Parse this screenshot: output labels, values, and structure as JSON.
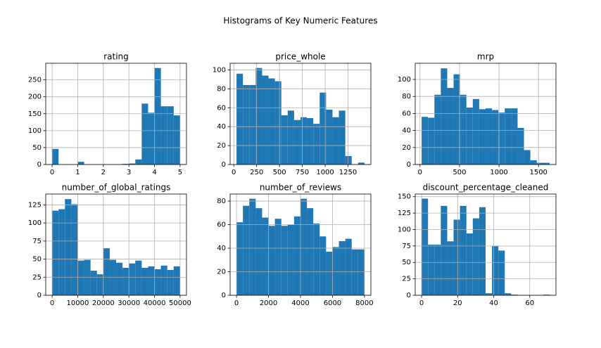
{
  "title": "Histograms of Key Numeric Features",
  "chart_data": [
    {
      "type": "histogram",
      "title": "rating",
      "color": "#1f77b4",
      "grid": true,
      "bins": [
        0,
        0.25,
        0.5,
        0.75,
        1,
        1.25,
        1.5,
        1.75,
        2,
        2.25,
        2.5,
        2.75,
        3,
        3.25,
        3.5,
        3.75,
        4,
        4.25,
        4.5,
        4.75,
        5
      ],
      "values": [
        46,
        0,
        0,
        0,
        8,
        0,
        0,
        0,
        0,
        0,
        1,
        2,
        3,
        15,
        180,
        153,
        285,
        172,
        172,
        145
      ],
      "xlim": [
        -0.25,
        5.25
      ],
      "xticks": [
        0,
        1,
        2,
        3,
        4,
        5
      ],
      "ylim": [
        0,
        299
      ],
      "yticks": [
        0,
        50,
        100,
        150,
        200,
        250
      ]
    },
    {
      "type": "histogram",
      "title": "price_whole",
      "color": "#1f77b4",
      "grid": true,
      "bins": [
        30,
        100,
        170,
        240,
        310,
        380,
        450,
        520,
        590,
        660,
        730,
        800,
        870,
        940,
        1010,
        1080,
        1150,
        1220,
        1290,
        1360,
        1430
      ],
      "values": [
        96,
        84,
        84,
        102,
        94,
        91,
        88,
        52,
        57,
        47,
        50,
        49,
        43,
        76,
        58,
        50,
        57,
        9,
        0,
        2
      ],
      "xlim": [
        -40,
        1500
      ],
      "xticks": [
        0,
        250,
        500,
        750,
        1000,
        1250
      ],
      "ylim": [
        0,
        107
      ],
      "yticks": [
        0,
        20,
        40,
        60,
        80,
        100
      ]
    },
    {
      "type": "histogram",
      "title": "mrp",
      "color": "#1f77b4",
      "grid": true,
      "bins": [
        20,
        101,
        182,
        263,
        344,
        425,
        506,
        587,
        668,
        749,
        830,
        911,
        992,
        1073,
        1154,
        1235,
        1316,
        1397,
        1478,
        1559,
        1640
      ],
      "values": [
        56,
        55,
        82,
        113,
        90,
        106,
        82,
        67,
        77,
        65,
        66,
        64,
        61,
        66,
        66,
        43,
        17,
        5,
        2,
        2
      ],
      "xlim": [
        -61,
        1721
      ],
      "xticks": [
        0,
        500,
        1000,
        1500
      ],
      "ylim": [
        0,
        119
      ],
      "yticks": [
        0,
        20,
        40,
        60,
        80,
        100
      ]
    },
    {
      "type": "histogram",
      "title": "number_of_global_ratings",
      "color": "#1f77b4",
      "grid": true,
      "bins": [
        0,
        2500,
        5000,
        7500,
        10000,
        12500,
        15000,
        17500,
        20000,
        22500,
        25000,
        27500,
        30000,
        32500,
        35000,
        37500,
        40000,
        42500,
        45000,
        47500,
        50000
      ],
      "values": [
        117,
        119,
        133,
        126,
        48,
        49,
        34,
        29,
        65,
        49,
        45,
        38,
        44,
        48,
        38,
        40,
        36,
        41,
        35,
        40
      ],
      "xlim": [
        -2500,
        52500
      ],
      "xticks": [
        0,
        10000,
        20000,
        30000,
        40000,
        50000
      ],
      "ylim": [
        0,
        140
      ],
      "yticks": [
        0,
        25,
        50,
        75,
        100,
        125
      ]
    },
    {
      "type": "histogram",
      "title": "number_of_reviews",
      "color": "#1f77b4",
      "grid": true,
      "bins": [
        0,
        400,
        800,
        1200,
        1600,
        2000,
        2400,
        2800,
        3200,
        3600,
        4000,
        4400,
        4800,
        5200,
        5600,
        6000,
        6400,
        6800,
        7200,
        7600,
        8000
      ],
      "values": [
        62,
        76,
        82,
        74,
        66,
        59,
        65,
        59,
        60,
        67,
        82,
        74,
        61,
        50,
        37,
        41,
        46,
        48,
        39,
        39
      ],
      "xlim": [
        -400,
        8400
      ],
      "xticks": [
        0,
        2000,
        4000,
        6000,
        8000
      ],
      "ylim": [
        0,
        86
      ],
      "yticks": [
        0,
        20,
        40,
        60,
        80
      ]
    },
    {
      "type": "histogram",
      "title": "discount_percentage_cleaned",
      "color": "#1f77b4",
      "grid": true,
      "bins": [
        0,
        3.55,
        7.1,
        10.65,
        14.2,
        17.75,
        21.3,
        24.85,
        28.4,
        31.95,
        35.5,
        39.05,
        42.6,
        46.15,
        49.7,
        53.25,
        56.8,
        60.35,
        63.9,
        67.45,
        71
      ],
      "values": [
        147,
        77,
        77,
        136,
        82,
        115,
        136,
        94,
        117,
        134,
        3,
        75,
        68,
        3,
        1,
        0,
        0,
        0,
        0,
        1
      ],
      "xlim": [
        -3.55,
        74.55
      ],
      "xticks": [
        0,
        20,
        40,
        60
      ],
      "ylim": [
        0,
        154
      ],
      "yticks": [
        0,
        25,
        50,
        75,
        100,
        125,
        150
      ]
    }
  ]
}
